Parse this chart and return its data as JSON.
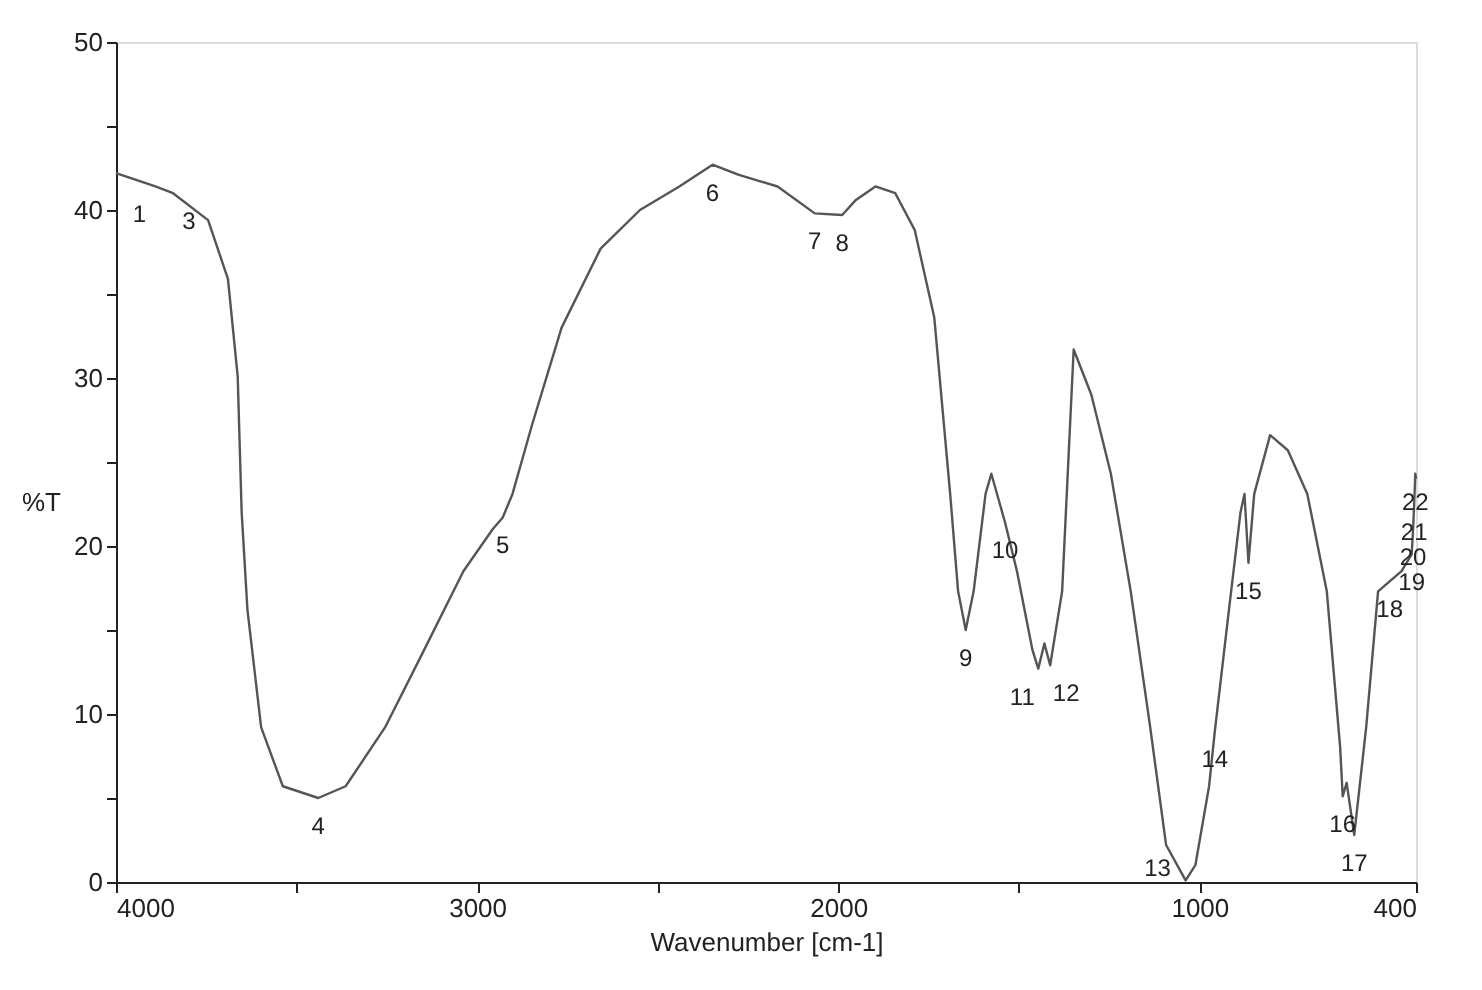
{
  "chart_data": {
    "type": "line",
    "xlabel": "Wavenumber [cm-1]",
    "ylabel": "%T",
    "xlim": [
      4000,
      400
    ],
    "xticks": [
      4000,
      {
        "value": 3500,
        "label": null
      },
      3000,
      {
        "value": 2500,
        "label": null
      },
      2000,
      {
        "value": 1500,
        "label": null
      },
      1000,
      400
    ],
    "ylim": [
      0,
      50
    ],
    "yticks": [
      0,
      {
        "value": 5,
        "label": null
      },
      10,
      {
        "value": 15,
        "label": null
      },
      20,
      {
        "value": 25,
        "label": null
      },
      30,
      {
        "value": 35,
        "label": null
      },
      40,
      {
        "value": 45,
        "label": null
      },
      50
    ],
    "grid": false,
    "marker": "none",
    "line_style": "solid",
    "series": [
      {
        "color": "#555555",
        "x": [
          4000,
          3891,
          3842,
          3745,
          3690,
          3663,
          3652,
          3636,
          3598,
          3538,
          3440,
          3364,
          3255,
          3147,
          3038,
          2957,
          2929,
          2902,
          2848,
          2766,
          2658,
          2549,
          2440,
          2348,
          2277,
          2168,
          2065,
          1989,
          1951,
          1897,
          1842,
          1788,
          1734,
          1690,
          1668,
          1647,
          1625,
          1592,
          1576,
          1538,
          1505,
          1462,
          1446,
          1429,
          1413,
          1380,
          1348,
          1299,
          1245,
          1190,
          1136,
          1092,
          1038,
          1011,
          973,
          957,
          918,
          886,
          875,
          864,
          848,
          804,
          755,
          701,
          647,
          610,
          603,
          592,
          571,
          538,
          505,
          473,
          440,
          412,
          408,
          405,
          402,
          400
        ],
        "values": [
          42.2,
          41.4,
          41.0,
          39.4,
          35.9,
          30.1,
          22.0,
          16.2,
          9.2,
          5.7,
          5.0,
          5.7,
          9.2,
          13.8,
          18.5,
          21.0,
          21.7,
          23.1,
          27.2,
          33.0,
          37.7,
          40.0,
          41.4,
          42.7,
          42.1,
          41.4,
          39.8,
          39.7,
          40.6,
          41.4,
          41.0,
          38.8,
          33.6,
          23.1,
          17.3,
          15.0,
          17.3,
          23.1,
          24.3,
          21.4,
          18.5,
          13.8,
          12.7,
          14.2,
          12.9,
          17.3,
          31.7,
          29.0,
          24.3,
          17.3,
          9.2,
          2.2,
          0.1,
          1.0,
          5.7,
          9.0,
          16.2,
          22.0,
          23.1,
          19.0,
          23.1,
          26.6,
          25.7,
          23.1,
          17.3,
          8.0,
          5.1,
          5.9,
          2.8,
          9.2,
          17.3,
          17.9,
          18.5,
          19.5,
          21.0,
          22.5,
          24.3,
          24.0
        ]
      }
    ],
    "annotations": [
      {
        "text": "1",
        "x": 3891,
        "y": 41.4
      },
      {
        "text": "3",
        "x": 3842,
        "y": 41.0
      },
      {
        "text": "4",
        "x": 3440,
        "y": 5.0
      },
      {
        "text": "5",
        "x": 2929,
        "y": 21.7
      },
      {
        "text": "6",
        "x": 2348,
        "y": 42.7
      },
      {
        "text": "7",
        "x": 2065,
        "y": 39.8
      },
      {
        "text": "8",
        "x": 1989,
        "y": 39.7
      },
      {
        "text": "9",
        "x": 1647,
        "y": 15.0
      },
      {
        "text": "10",
        "x": 1538,
        "y": 21.4
      },
      {
        "text": "11",
        "x": 1446,
        "y": 12.7
      },
      {
        "text": "12",
        "x": 1413,
        "y": 12.9
      },
      {
        "text": "13",
        "x": 1038,
        "y": 0.1
      },
      {
        "text": "14",
        "x": 957,
        "y": 9.0
      },
      {
        "text": "15",
        "x": 864,
        "y": 19.0
      },
      {
        "text": "16",
        "x": 603,
        "y": 5.1
      },
      {
        "text": "17",
        "x": 571,
        "y": 2.8
      },
      {
        "text": "18",
        "x": 473,
        "y": 17.9
      },
      {
        "text": "19",
        "x": 412,
        "y": 19.5
      },
      {
        "text": "20",
        "x": 408,
        "y": 21.0
      },
      {
        "text": "21",
        "x": 405,
        "y": 22.5
      },
      {
        "text": "22",
        "x": 402,
        "y": 24.3
      }
    ]
  }
}
